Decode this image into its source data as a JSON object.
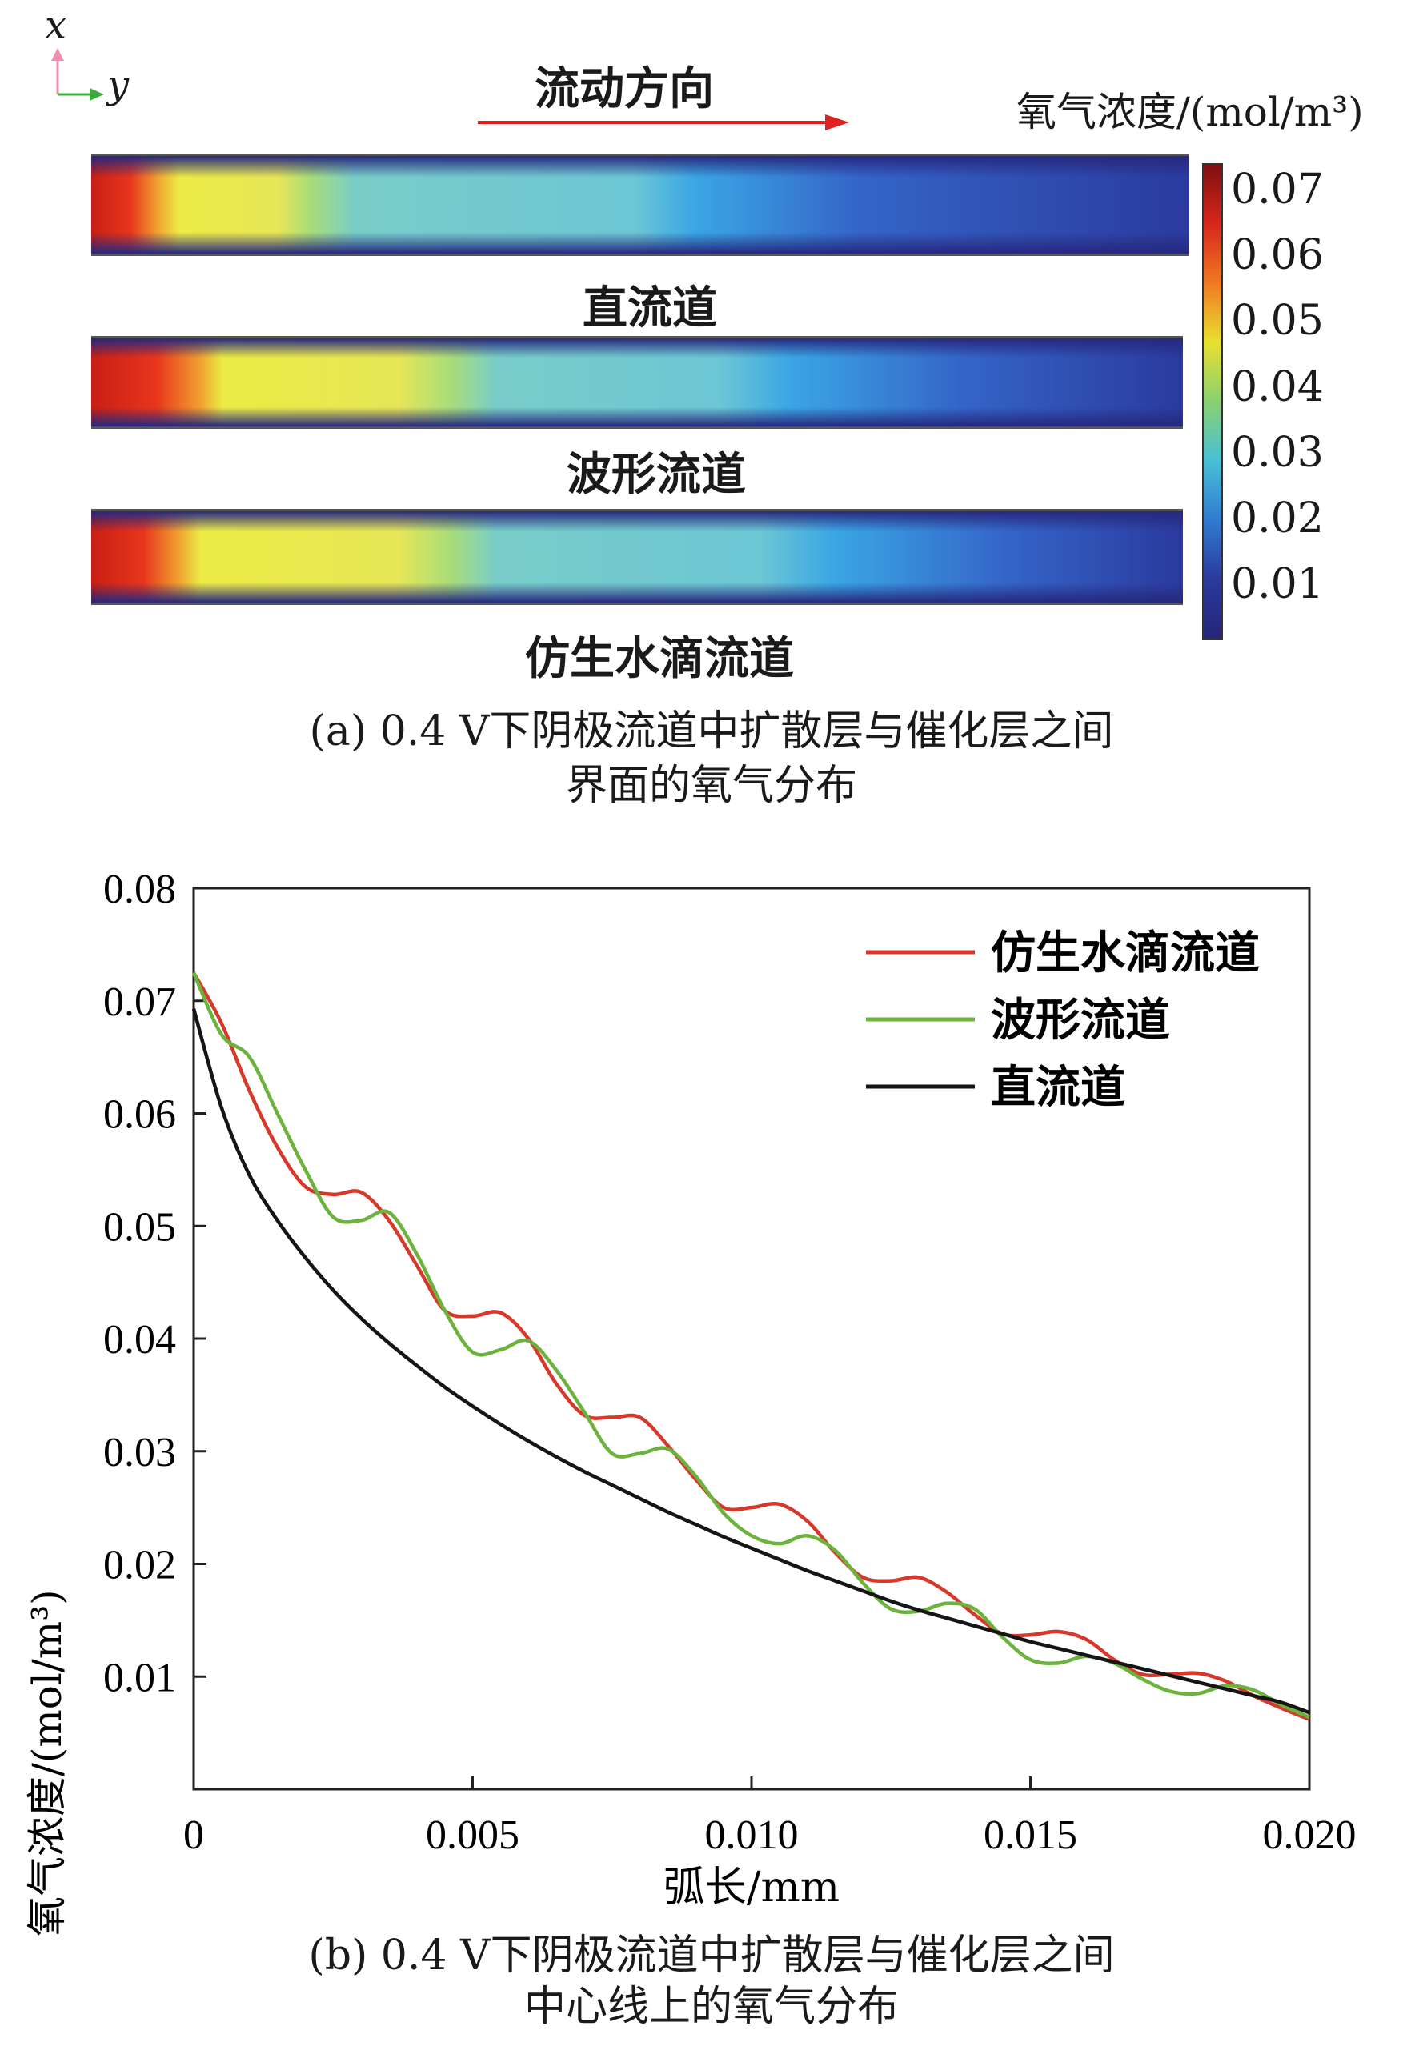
{
  "panel_a": {
    "axis_x_label": "x",
    "axis_y_label": "y",
    "flow_direction_label": "流动方向",
    "colorbar_title": "氧气浓度/(mol/m³)",
    "colorbar_ticks": [
      "0.07",
      "0.06",
      "0.05",
      "0.04",
      "0.03",
      "0.02",
      "0.01"
    ],
    "colorbar_colors": [
      "#7f1010",
      "#d8261c",
      "#f07a22",
      "#e8e030",
      "#8ad070",
      "#48c0d8",
      "#2f7cd0",
      "#2a3a9c",
      "#26257a"
    ],
    "channels": [
      {
        "label": "直流道",
        "orange_end": 0.06,
        "yellow_end": 0.2,
        "cyan_end": 0.55,
        "blue_start": 0.7
      },
      {
        "label": "波形流道",
        "orange_end": 0.1,
        "yellow_end": 0.33,
        "cyan_end": 0.64,
        "blue_start": 0.8
      },
      {
        "label": "仿生水滴流道",
        "orange_end": 0.08,
        "yellow_end": 0.33,
        "cyan_end": 0.68,
        "blue_start": 0.84
      }
    ],
    "caption_line1": "(a)  0.4 V下阴极流道中扩散层与催化层之间",
    "caption_line2": "界面的氧气分布"
  },
  "chart_data": {
    "type": "line",
    "xlabel": "弧长/mm",
    "ylabel": "氧气浓度/(mol/m³)",
    "xlim": [
      0,
      0.02
    ],
    "ylim": [
      0,
      0.08
    ],
    "x_ticks": [
      "0",
      "0.005",
      "0.010",
      "0.015",
      "0.020"
    ],
    "x_tick_values": [
      0,
      0.005,
      0.01,
      0.015,
      0.02
    ],
    "y_ticks": [
      "0.01",
      "0.02",
      "0.03",
      "0.04",
      "0.05",
      "0.06",
      "0.07",
      "0.08"
    ],
    "y_tick_values": [
      0.01,
      0.02,
      0.03,
      0.04,
      0.05,
      0.06,
      0.07,
      0.08
    ],
    "legend_position": "top-right",
    "grid": false,
    "series": [
      {
        "name": "仿生水滴流道",
        "color": "#d6392b",
        "x": [
          0,
          0.0005,
          0.001,
          0.0015,
          0.002,
          0.0025,
          0.003,
          0.0035,
          0.004,
          0.0045,
          0.005,
          0.0055,
          0.006,
          0.0065,
          0.007,
          0.0075,
          0.008,
          0.0085,
          0.009,
          0.0095,
          0.01,
          0.0105,
          0.011,
          0.0115,
          0.012,
          0.0125,
          0.013,
          0.0135,
          0.014,
          0.0145,
          0.015,
          0.0155,
          0.016,
          0.0165,
          0.017,
          0.0175,
          0.018,
          0.0185,
          0.019,
          0.0195,
          0.02
        ],
        "y": [
          0.0725,
          0.068,
          0.062,
          0.057,
          0.0535,
          0.0528,
          0.053,
          0.0505,
          0.0465,
          0.0425,
          0.042,
          0.0423,
          0.04,
          0.036,
          0.0332,
          0.033,
          0.033,
          0.0305,
          0.0275,
          0.025,
          0.025,
          0.0253,
          0.0238,
          0.021,
          0.0188,
          0.0185,
          0.0188,
          0.0175,
          0.0155,
          0.0138,
          0.0137,
          0.014,
          0.0133,
          0.0115,
          0.0102,
          0.0102,
          0.0103,
          0.0096,
          0.0083,
          0.0072,
          0.0062
        ]
      },
      {
        "name": "波形流道",
        "color": "#6cb33e",
        "x": [
          0,
          0.0005,
          0.001,
          0.0015,
          0.002,
          0.0025,
          0.003,
          0.0035,
          0.004,
          0.0045,
          0.005,
          0.0055,
          0.006,
          0.0065,
          0.007,
          0.0075,
          0.008,
          0.0085,
          0.009,
          0.0095,
          0.01,
          0.0105,
          0.011,
          0.0115,
          0.012,
          0.0125,
          0.013,
          0.0135,
          0.014,
          0.0145,
          0.015,
          0.0155,
          0.016,
          0.0165,
          0.017,
          0.0175,
          0.018,
          0.0185,
          0.019,
          0.0195,
          0.02
        ],
        "y": [
          0.0725,
          0.067,
          0.065,
          0.06,
          0.055,
          0.0508,
          0.0505,
          0.0512,
          0.0475,
          0.0425,
          0.0388,
          0.039,
          0.0398,
          0.0372,
          0.0335,
          0.0298,
          0.0298,
          0.0302,
          0.0278,
          0.0245,
          0.0225,
          0.0218,
          0.0225,
          0.0212,
          0.0183,
          0.016,
          0.0158,
          0.0165,
          0.016,
          0.0135,
          0.0115,
          0.0112,
          0.0118,
          0.0112,
          0.0098,
          0.0087,
          0.0085,
          0.0092,
          0.0088,
          0.0075,
          0.0064
        ]
      },
      {
        "name": "直流道",
        "color": "#151515",
        "x": [
          0,
          0.0005,
          0.001,
          0.0015,
          0.002,
          0.0025,
          0.003,
          0.0035,
          0.004,
          0.0045,
          0.005,
          0.0055,
          0.006,
          0.0065,
          0.007,
          0.0075,
          0.008,
          0.0085,
          0.009,
          0.0095,
          0.01,
          0.0105,
          0.011,
          0.0115,
          0.012,
          0.0125,
          0.013,
          0.0135,
          0.014,
          0.0145,
          0.015,
          0.0155,
          0.016,
          0.0165,
          0.017,
          0.0175,
          0.018,
          0.0185,
          0.019,
          0.0195,
          0.02
        ],
        "y": [
          0.0693,
          0.0605,
          0.0545,
          0.0505,
          0.0472,
          0.0443,
          0.0418,
          0.0396,
          0.0376,
          0.0357,
          0.034,
          0.0324,
          0.0309,
          0.0295,
          0.0282,
          0.027,
          0.0258,
          0.0246,
          0.0235,
          0.0224,
          0.0214,
          0.0204,
          0.0194,
          0.0185,
          0.0176,
          0.0167,
          0.0159,
          0.0152,
          0.0145,
          0.0138,
          0.0131,
          0.0125,
          0.0119,
          0.0113,
          0.0107,
          0.0101,
          0.0095,
          0.0089,
          0.0083,
          0.0077,
          0.0068
        ]
      }
    ],
    "caption_line1": "(b)  0.4 V下阴极流道中扩散层与催化层之间",
    "caption_line2": "中心线上的氧气分布"
  }
}
